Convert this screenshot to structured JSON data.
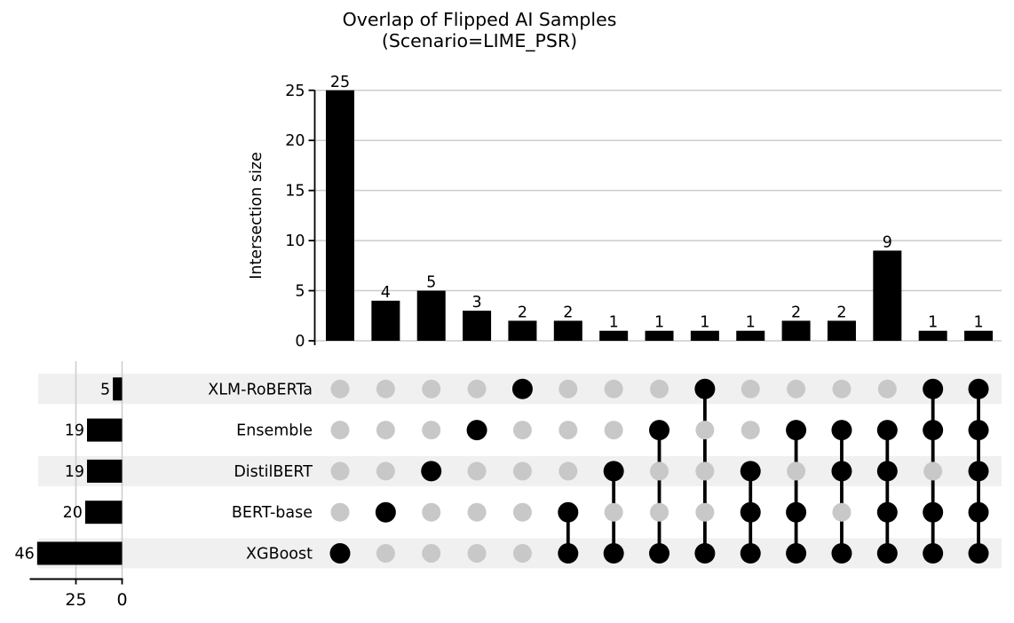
{
  "title": {
    "line1": "Overlap of Flipped AI Samples",
    "line2": "(Scenario=LIME_PSR)"
  },
  "chart_data": {
    "type": "upset",
    "title": "Overlap of Flipped AI Samples (Scenario=LIME_PSR)",
    "intersection_axis": {
      "label": "Intersection size",
      "ticks": [
        0,
        5,
        10,
        15,
        20,
        25
      ],
      "ylim": [
        0,
        25
      ],
      "grid": true
    },
    "set_size_axis": {
      "ticks": [
        25,
        0
      ],
      "xlim": [
        50,
        0
      ],
      "grid": true
    },
    "sets": [
      {
        "name": "XLM-RoBERTa",
        "size": 5
      },
      {
        "name": "Ensemble",
        "size": 19
      },
      {
        "name": "DistilBERT",
        "size": 19
      },
      {
        "name": "BERT-base",
        "size": 20
      },
      {
        "name": "XGBoost",
        "size": 46
      }
    ],
    "intersections": [
      {
        "size": 25,
        "members": [
          "XGBoost"
        ]
      },
      {
        "size": 4,
        "members": [
          "BERT-base"
        ]
      },
      {
        "size": 5,
        "members": [
          "DistilBERT"
        ]
      },
      {
        "size": 3,
        "members": [
          "Ensemble"
        ]
      },
      {
        "size": 2,
        "members": [
          "XLM-RoBERTa"
        ]
      },
      {
        "size": 2,
        "members": [
          "BERT-base",
          "XGBoost"
        ]
      },
      {
        "size": 1,
        "members": [
          "DistilBERT",
          "XGBoost"
        ]
      },
      {
        "size": 1,
        "members": [
          "Ensemble",
          "XGBoost"
        ]
      },
      {
        "size": 1,
        "members": [
          "XLM-RoBERTa",
          "XGBoost"
        ]
      },
      {
        "size": 1,
        "members": [
          "DistilBERT",
          "BERT-base",
          "XGBoost"
        ]
      },
      {
        "size": 2,
        "members": [
          "Ensemble",
          "BERT-base",
          "XGBoost"
        ]
      },
      {
        "size": 2,
        "members": [
          "Ensemble",
          "DistilBERT",
          "XGBoost"
        ]
      },
      {
        "size": 9,
        "members": [
          "Ensemble",
          "DistilBERT",
          "BERT-base",
          "XGBoost"
        ]
      },
      {
        "size": 1,
        "members": [
          "XLM-RoBERTa",
          "Ensemble",
          "BERT-base",
          "XGBoost"
        ]
      },
      {
        "size": 1,
        "members": [
          "XLM-RoBERTa",
          "Ensemble",
          "DistilBERT",
          "BERT-base",
          "XGBoost"
        ]
      }
    ],
    "colors": {
      "bar": "#000000",
      "active_dot": "#000000",
      "inactive_dot": "#c8c8c8",
      "stripe": "#f0f0f0",
      "gridline": "#cccccc",
      "axis": "#000000"
    }
  }
}
